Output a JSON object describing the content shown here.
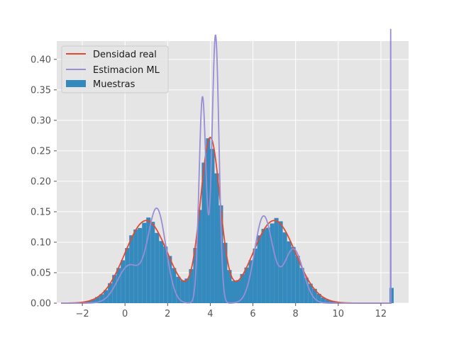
{
  "chart_data": {
    "type": "bar+line",
    "title": "",
    "xlabel": "",
    "ylabel": "",
    "xlim": [
      -3.2,
      13.3
    ],
    "ylim": [
      0,
      0.43
    ],
    "x_ticks": [
      -2,
      0,
      2,
      4,
      6,
      8,
      10,
      12
    ],
    "x_tick_labels": [
      "−2",
      "0",
      "2",
      "4",
      "6",
      "8",
      "10",
      "12"
    ],
    "y_ticks": [
      0,
      0.05,
      0.1,
      0.15,
      0.2,
      0.25,
      0.3,
      0.35,
      0.4
    ],
    "y_tick_labels": [
      "0.00",
      "0.05",
      "0.10",
      "0.15",
      "0.20",
      "0.25",
      "0.30",
      "0.35",
      "0.40"
    ],
    "grid": true,
    "legend_position": "top-left",
    "colors": {
      "background": "#e5e5e5",
      "grid": "#ffffff",
      "real": "#e24a33",
      "ml": "#988ed5",
      "hist": "#348abd"
    },
    "series": [
      {
        "name": "Densidad real",
        "kind": "line",
        "color": "#e24a33",
        "function": "0.34*N(1,1.0)+0.31*N(4,0.46)+0.34*N(7,1.0)",
        "x_range": [
          -3,
          12.5
        ]
      },
      {
        "name": "Estimacion ML",
        "kind": "line",
        "color": "#988ed5",
        "x_range": [
          -3,
          12.5
        ],
        "note": "multi-peak estimate with spike near x=12.45"
      },
      {
        "name": "Muestras",
        "kind": "histogram",
        "color": "#348abd",
        "bin_width": 0.2,
        "x_range": [
          -2.0,
          12.6
        ]
      }
    ],
    "legend": [
      "Densidad real",
      "Estimacion ML",
      "Muestras"
    ]
  }
}
